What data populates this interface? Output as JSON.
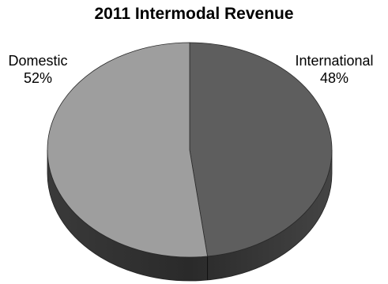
{
  "chart_data": {
    "type": "pie",
    "title": "2011 Intermodal Revenue",
    "slices": [
      {
        "label": "Domestic",
        "value": 52,
        "percent_label": "52%",
        "color": "#9e9e9e",
        "side_color": "#2e2e2e"
      },
      {
        "label": "International",
        "value": 48,
        "percent_label": "48%",
        "color": "#5e5e5e",
        "side_color": "#3a3a3a"
      }
    ]
  }
}
